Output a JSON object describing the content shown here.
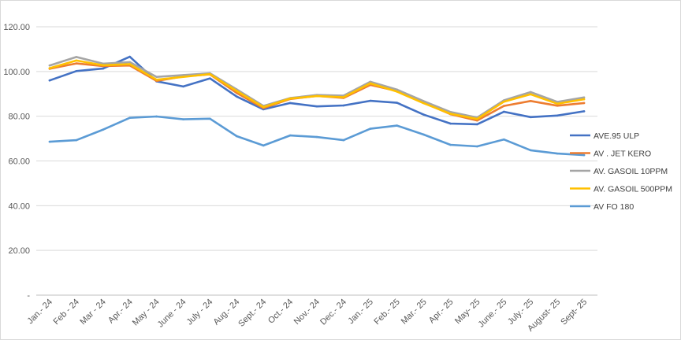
{
  "chart_data": {
    "type": "line",
    "title": "",
    "xlabel": "",
    "ylabel": "",
    "ylim": [
      0,
      120
    ],
    "yticks": [
      "-",
      "20.00",
      "40.00",
      "60.00",
      "80.00",
      "100.00",
      "120.00"
    ],
    "grid": "horizontal",
    "legend_position": "right",
    "categories": [
      "Jan.- 24",
      "Feb - 24",
      "Mar - 24",
      "Apr.- 24",
      "May - 24",
      "June - 24",
      "July - 24",
      "Aug.- 24",
      "Sept.- 24",
      "Oct.- 24",
      "Nov.- 24",
      "Dec.- 24",
      "Jan.- 25",
      "Feb.- 25",
      "Mar.- 25",
      "Apr.- 25",
      "May- 25",
      "June.- 25",
      "July.- 25",
      "August- 25",
      "Sept- 25"
    ],
    "series": [
      {
        "name": "AVE.95 ULP",
        "color": "#4472c4",
        "values": [
          96.0,
          100.2,
          101.3,
          106.6,
          95.6,
          93.3,
          96.9,
          88.8,
          83.1,
          85.9,
          84.4,
          84.8,
          86.9,
          86.0,
          80.7,
          76.7,
          76.4,
          82.0,
          79.6,
          80.3,
          82.2
        ]
      },
      {
        "name": "AV . JET KERO",
        "color": "#ed7d31",
        "values": [
          101.2,
          103.6,
          102.4,
          102.7,
          95.8,
          97.8,
          98.7,
          90.4,
          83.6,
          87.7,
          89.1,
          88.2,
          94.0,
          91.3,
          86.0,
          80.9,
          78.1,
          84.6,
          86.8,
          84.7,
          85.9
        ]
      },
      {
        "name": "AV. GASOIL 10PPM",
        "color": "#a5a5a5",
        "values": [
          102.7,
          106.5,
          103.5,
          104.2,
          97.6,
          98.4,
          99.2,
          92.0,
          84.6,
          88.1,
          89.5,
          89.2,
          95.4,
          91.9,
          86.7,
          81.9,
          79.4,
          87.1,
          90.8,
          86.4,
          88.4
        ]
      },
      {
        "name": "AV. GASOIL 500PPM",
        "color": "#ffc000",
        "values": [
          101.5,
          104.9,
          102.8,
          103.3,
          96.3,
          97.6,
          98.8,
          91.3,
          84.1,
          87.9,
          89.0,
          88.5,
          94.7,
          91.0,
          85.8,
          81.1,
          78.8,
          86.5,
          89.8,
          85.6,
          87.6
        ]
      },
      {
        "name": "AV FO 180",
        "color": "#5b9bd5",
        "values": [
          68.6,
          69.3,
          74.0,
          79.3,
          79.9,
          78.6,
          78.9,
          71.1,
          66.9,
          71.4,
          70.7,
          69.3,
          74.4,
          75.8,
          71.8,
          67.2,
          66.5,
          69.6,
          64.8,
          63.3,
          62.6
        ]
      }
    ]
  }
}
